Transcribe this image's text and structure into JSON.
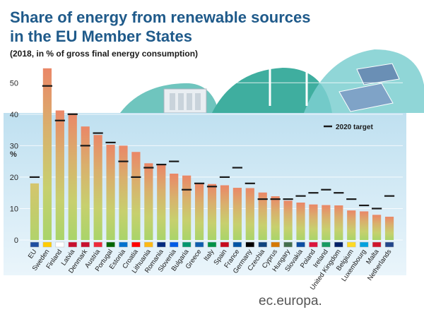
{
  "header": {
    "title_line1": "Share of energy from renewable sources",
    "title_line2": "in the EU Member States",
    "subtitle": "(2018, in % of gross final energy consumption)"
  },
  "footer": {
    "source": "ec.europa."
  },
  "colors": {
    "title": "#1f5a8a",
    "plot_bg_top": "#cfe7f3",
    "bar_top": "#e98a6a",
    "bar_mid": "#c9cf6e",
    "bar_bottom": "#a8d56b",
    "target": "#1a1a1a",
    "eu_bar": "#c4ce74",
    "landscape": "#4fb7b0"
  },
  "chart_data": {
    "type": "bar",
    "title": "Share of energy from renewable sources in the EU Member States",
    "subtitle": "(2018, in % of gross final energy consumption)",
    "xlabel": "",
    "ylabel": "%",
    "ylim": [
      0,
      55
    ],
    "yticks": [
      0,
      10,
      20,
      30,
      40,
      50
    ],
    "legend": {
      "target_label": "2020 target",
      "position": "top-right"
    },
    "categories": [
      "EU",
      "Sweden",
      "Finland",
      "Latvia",
      "Denmark",
      "Austria",
      "Portugal",
      "Estonia",
      "Croatia",
      "Lithuania",
      "Romania",
      "Slovenia",
      "Bulgaria",
      "Greece",
      "Italy",
      "Spain",
      "France",
      "Germany",
      "Czechia",
      "Cyprus",
      "Hungary",
      "Slovakia",
      "Poland",
      "Ireland",
      "United Kingdom",
      "Belgium",
      "Luxembourg",
      "Malta",
      "Netherlands"
    ],
    "series": [
      {
        "name": "",
        "values": [
          18.0,
          54.6,
          41.2,
          40.3,
          36.1,
          33.4,
          30.3,
          30.0,
          28.0,
          24.4,
          23.9,
          21.1,
          20.5,
          18.0,
          17.8,
          17.4,
          16.6,
          16.5,
          15.1,
          13.9,
          12.5,
          11.9,
          11.3,
          11.1,
          11.0,
          9.4,
          9.1,
          8.0,
          7.4
        ]
      },
      {
        "name": "2020 target",
        "values": [
          20,
          49,
          38,
          40,
          30,
          34,
          31,
          25,
          20,
          23,
          24,
          25,
          16,
          18,
          17,
          20,
          23,
          18,
          13,
          13,
          13,
          14,
          15,
          16,
          15,
          13,
          11,
          10,
          14
        ]
      }
    ]
  }
}
